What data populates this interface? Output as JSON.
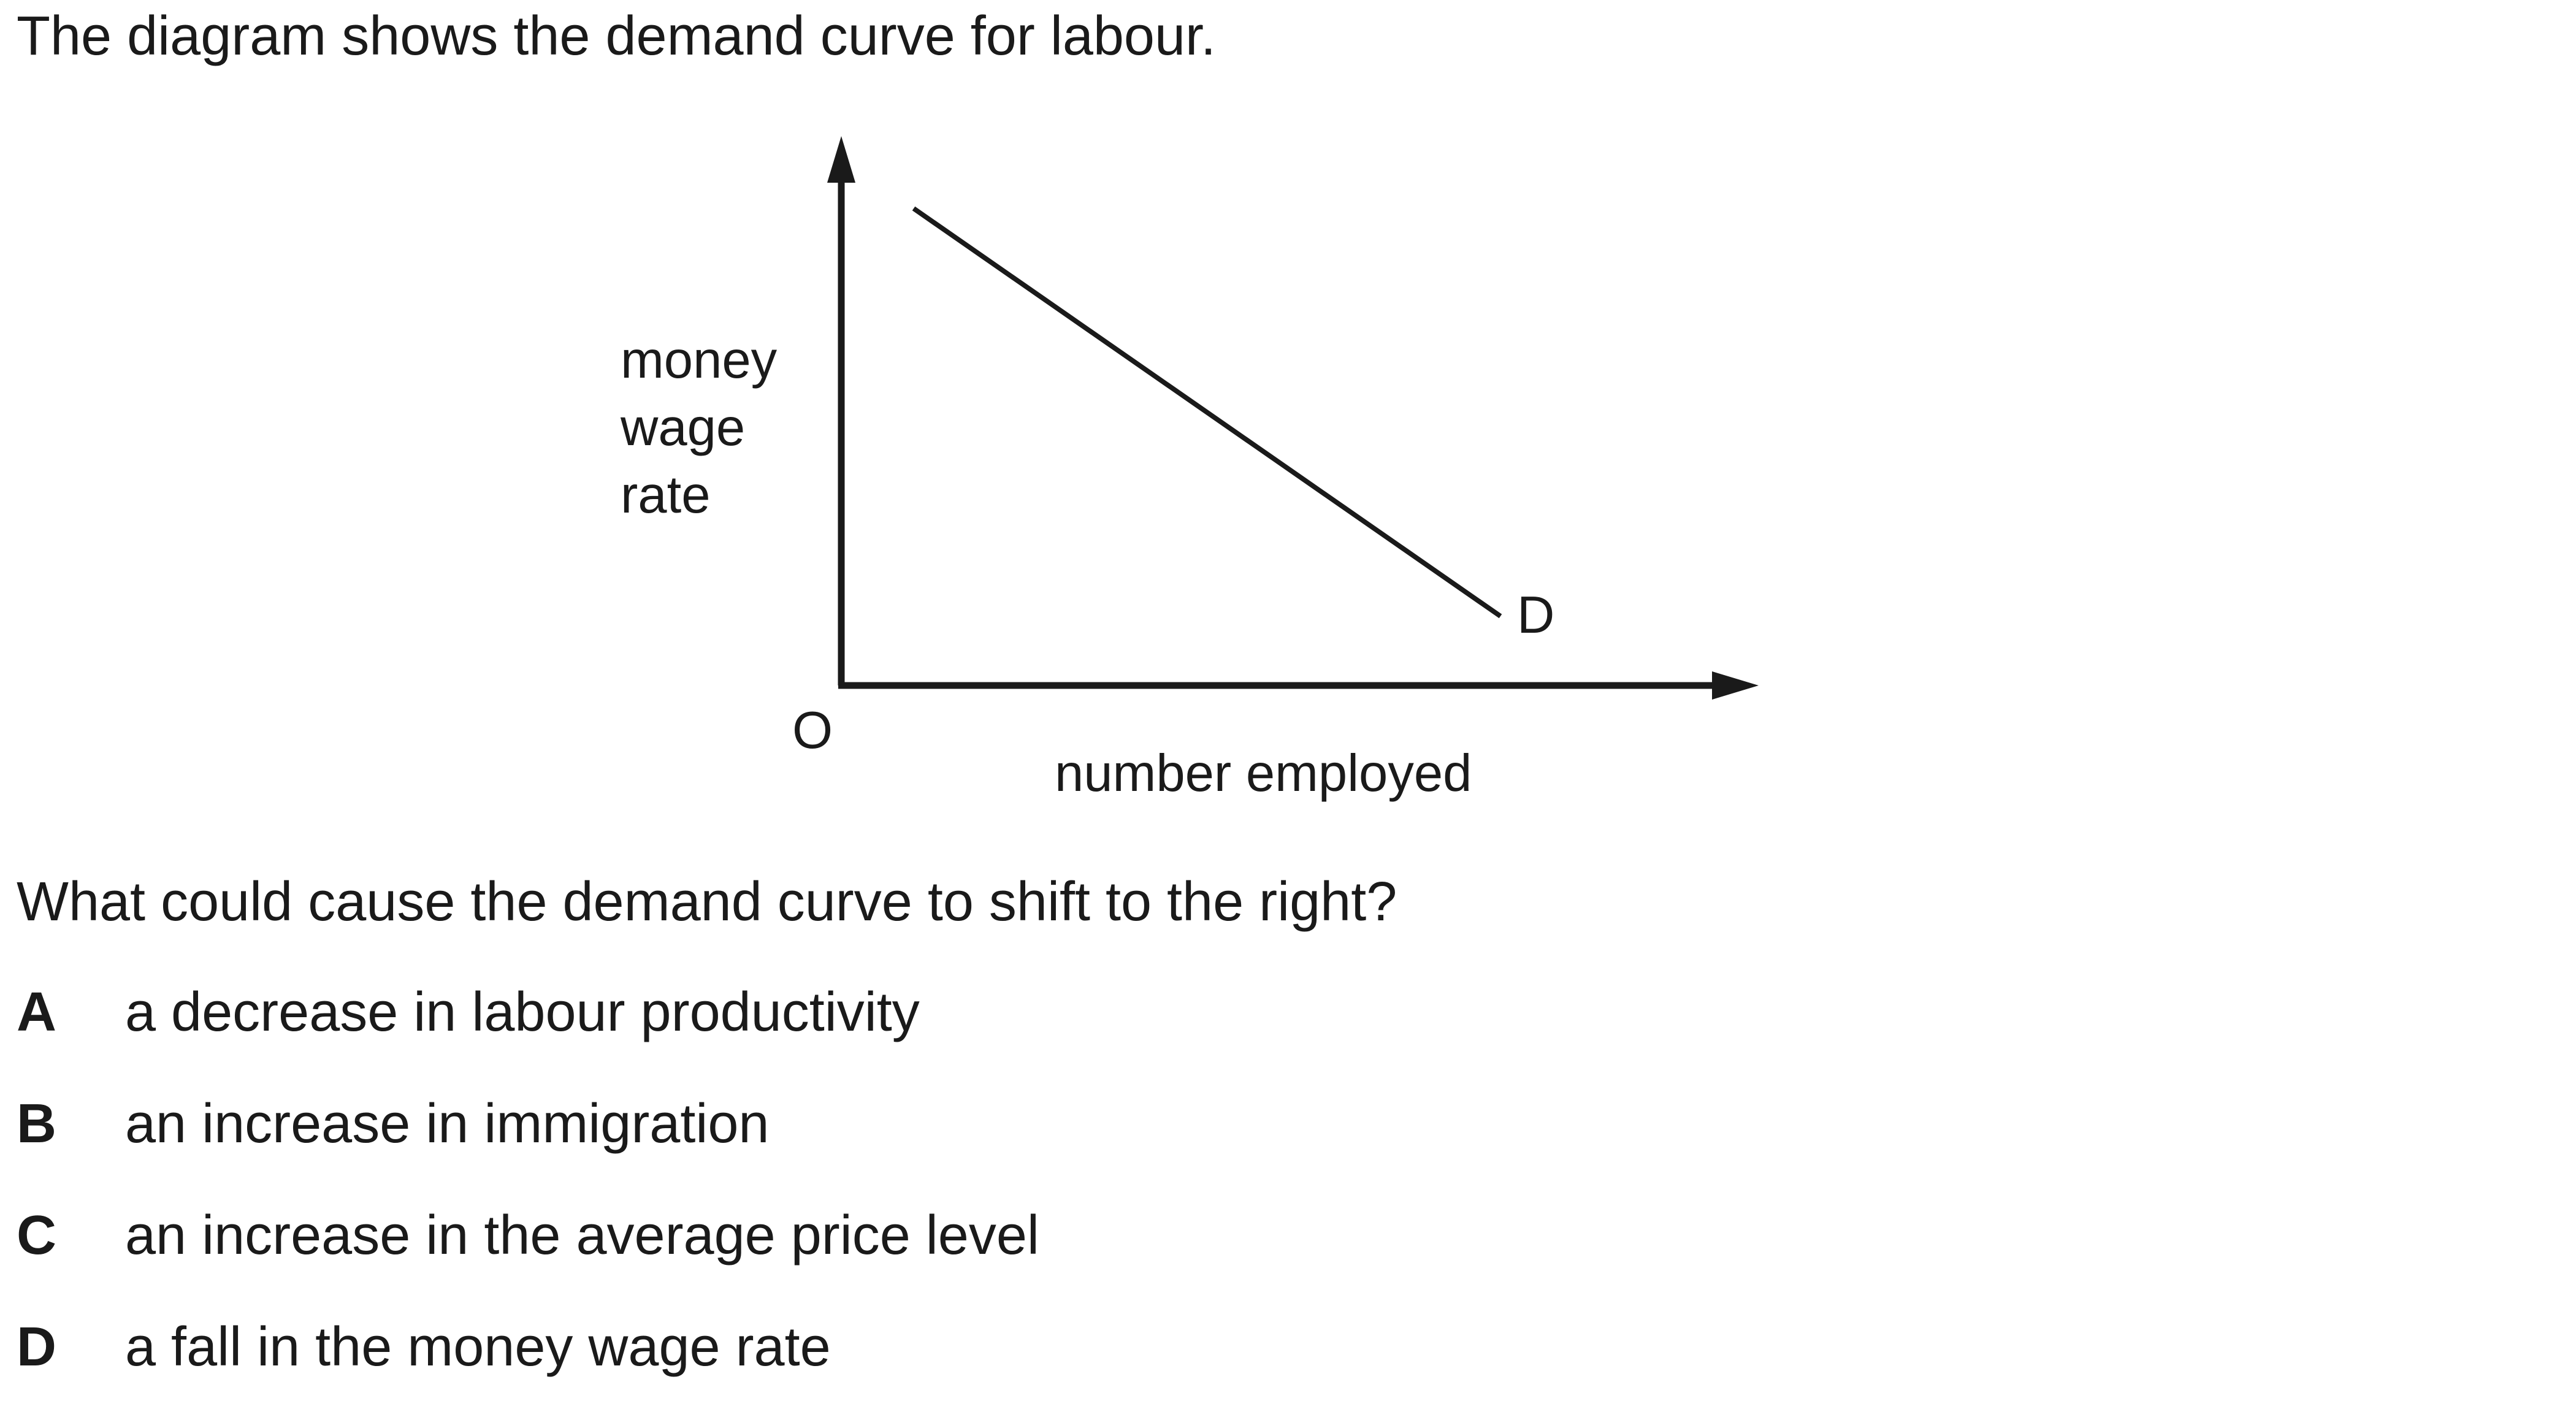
{
  "intro": "The diagram shows the demand curve for labour.",
  "diagram": {
    "y_axis_label": [
      "money",
      "wage",
      "rate"
    ],
    "x_axis_label": "number employed",
    "origin_label": "O",
    "curve_label": "D",
    "line_color": "#1a1a1a"
  },
  "question": "What could cause the demand curve to shift to the right?",
  "options": [
    {
      "letter": "A",
      "text": "a decrease in labour productivity"
    },
    {
      "letter": "B",
      "text": "an increase in immigration"
    },
    {
      "letter": "C",
      "text": "an increase in the average price level"
    },
    {
      "letter": "D",
      "text": "a fall in the money wage rate"
    }
  ]
}
